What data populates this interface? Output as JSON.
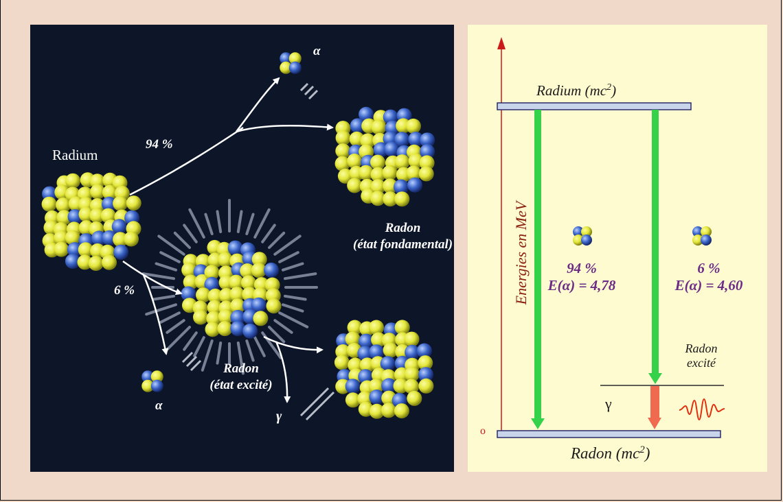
{
  "colors": {
    "page_bg": "#f0d9c8",
    "left_bg": "#0d1628",
    "right_bg": "#fffbd0",
    "nucleon_yellow": "#e3e63a",
    "nucleon_blue": "#3a64c8",
    "arrow_green": "#34d24a",
    "arrow_red": "#f06a50",
    "axis_red": "#cc1a1a",
    "level_blue": "#c8d4ea",
    "label_purple": "#6b2a85"
  },
  "left": {
    "radium_label": "Radium",
    "pct_94": "94 %",
    "pct_6": "6 %",
    "alpha_top": "α",
    "alpha_bottom": "α",
    "gamma": "γ",
    "radon_ground_line1": "Radon",
    "radon_ground_line2": "(état fondamental)",
    "radon_excited_line1": "Radon",
    "radon_excited_line2": "(état excité)"
  },
  "right": {
    "y_axis_label": "Energies en MeV",
    "zero_label": "o",
    "radium_level_label": "Radium (mc",
    "radium_level_sup": "2",
    "radium_level_close": ")",
    "radon_level_label": "Radon (mc",
    "radon_level_sup": "2",
    "radon_level_close": ")",
    "branch1_pct": "94 %",
    "branch1_energy": "E(α) = 4,78",
    "branch2_pct": "6 %",
    "branch2_energy": "E(α) = 4,60",
    "radon_excited_line1": "Radon",
    "radon_excited_line2": "excité",
    "gamma": "γ"
  }
}
